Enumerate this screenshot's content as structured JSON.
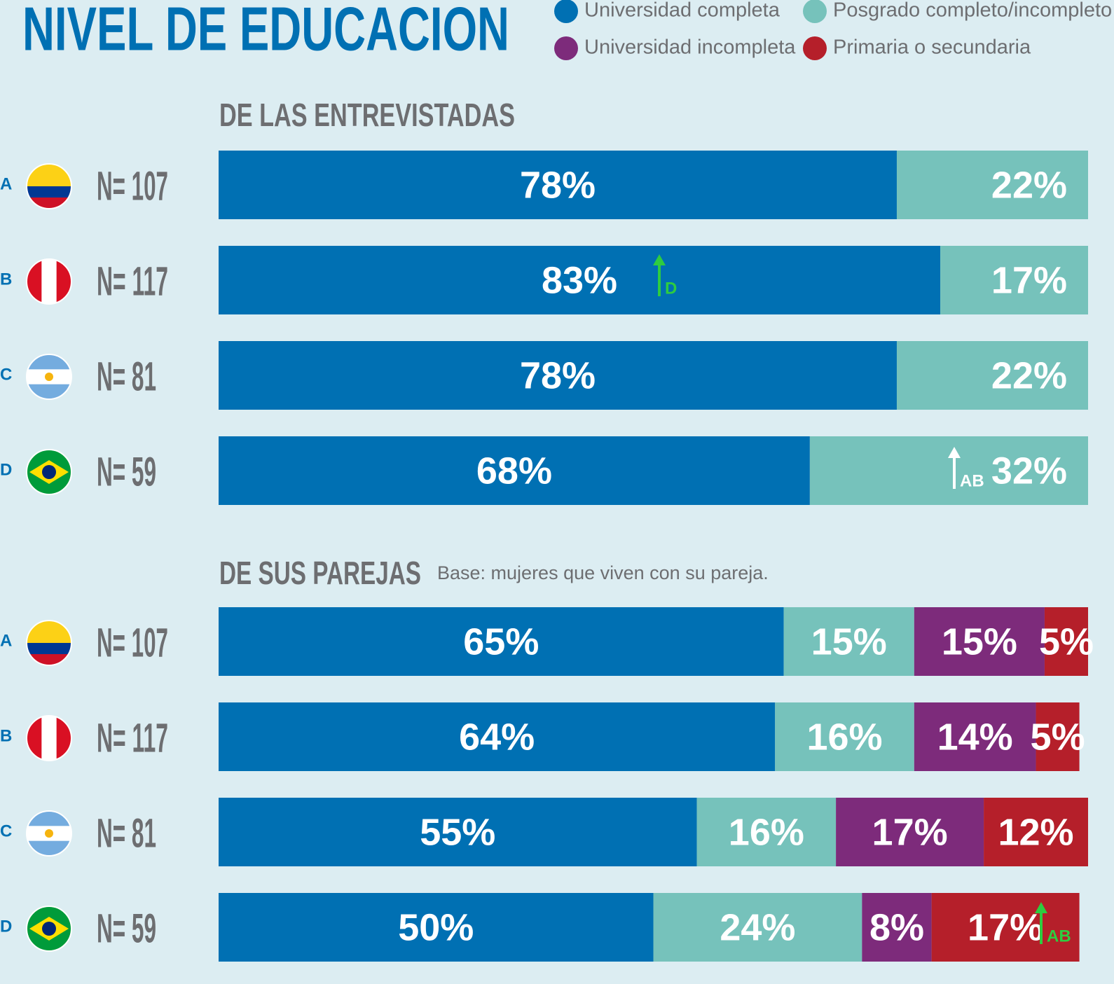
{
  "title": "NIVEL DE EDUCACION",
  "chart_data": [
    {
      "type": "bar",
      "orientation": "horizontal",
      "stacked": true,
      "title": "DE LAS ENTREVISTADAS",
      "categories": [
        "A",
        "B",
        "C",
        "D"
      ],
      "sample_sizes": [
        "N= 107",
        "N= 117",
        "N= 81",
        "N= 59"
      ],
      "xlim": [
        0,
        100
      ],
      "series": [
        {
          "name": "Universidad completa",
          "color": "#0070b3",
          "values": [
            78,
            83,
            78,
            68
          ],
          "value_labels": [
            "78%",
            "83%",
            "78%",
            "68%"
          ]
        },
        {
          "name": "Posgrado completo/incompleto",
          "color": "#76c2bb",
          "values": [
            22,
            17,
            22,
            32
          ],
          "value_labels": [
            "22%",
            "17%",
            "22%",
            "32%"
          ]
        }
      ],
      "annotations": [
        "D",
        "AB"
      ]
    },
    {
      "type": "bar",
      "orientation": "horizontal",
      "stacked": true,
      "title": "DE SUS PAREJAS",
      "subtitle": "Base:  mujeres que viven con su pareja.",
      "categories": [
        "A",
        "B",
        "C",
        "D"
      ],
      "sample_sizes": [
        "N= 107",
        "N= 117",
        "N= 81",
        "N= 59"
      ],
      "xlim": [
        0,
        100
      ],
      "series": [
        {
          "name": "Universidad completa",
          "color": "#0070b3",
          "values": [
            65,
            64,
            55,
            50
          ],
          "value_labels": [
            "65%",
            "64%",
            "55%",
            "50%"
          ]
        },
        {
          "name": "Posgrado completo/incompleto",
          "color": "#76c2bb",
          "values": [
            15,
            16,
            16,
            24
          ],
          "value_labels": [
            "15%",
            "16%",
            "16%",
            "24%"
          ]
        },
        {
          "name": "Universidad incompleta",
          "color": "#7d2b7b",
          "values": [
            15,
            14,
            17,
            8
          ],
          "value_labels": [
            "15%",
            "14%",
            "17%",
            "8%"
          ]
        },
        {
          "name": "Primaria o secundaria",
          "color": "#b51f2a",
          "values": [
            5,
            5,
            12,
            17
          ],
          "value_labels": [
            "5%",
            "5%",
            "12%",
            "17%"
          ]
        }
      ],
      "annotations": [
        "AB"
      ]
    }
  ]
}
